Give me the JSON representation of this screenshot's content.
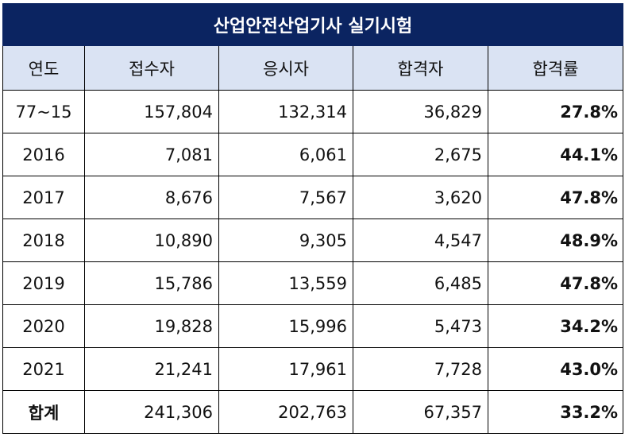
{
  "title": "산업안전산업기사 실기시험",
  "headers": [
    "연도",
    "접수자",
    "응시자",
    "합격자",
    "합격률"
  ],
  "rows": [
    {
      "year": "77~15",
      "applicants": "157,804",
      "examinees": "132,314",
      "passers": "36,829",
      "rate": "27.8%"
    },
    {
      "year": "2016",
      "applicants": "7,081",
      "examinees": "6,061",
      "passers": "2,675",
      "rate": "44.1%"
    },
    {
      "year": "2017",
      "applicants": "8,676",
      "examinees": "7,567",
      "passers": "3,620",
      "rate": "47.8%"
    },
    {
      "year": "2018",
      "applicants": "10,890",
      "examinees": "9,305",
      "passers": "4,547",
      "rate": "48.9%"
    },
    {
      "year": "2019",
      "applicants": "15,786",
      "examinees": "13,559",
      "passers": "6,485",
      "rate": "47.8%"
    },
    {
      "year": "2020",
      "applicants": "19,828",
      "examinees": "15,996",
      "passers": "5,473",
      "rate": "34.2%"
    },
    {
      "year": "2021",
      "applicants": "21,241",
      "examinees": "17,961",
      "passers": "7,728",
      "rate": "43.0%"
    }
  ],
  "total": {
    "label": "합계",
    "applicants": "241,306",
    "examinees": "202,763",
    "passers": "67,357",
    "rate": "33.2%"
  },
  "colors": {
    "title_bg": "#0b2461",
    "header_bg": "#dae3f3"
  }
}
